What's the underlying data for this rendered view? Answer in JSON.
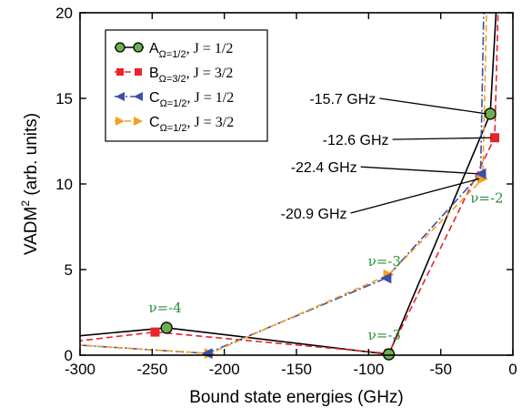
{
  "chart_data": {
    "type": "line",
    "xlabel": "Bound state energies (GHz)",
    "ylabel": "VADM",
    "ylabel_sup": "2",
    "ylabel_tail": " (arb. units)",
    "xlim": [
      -300,
      0
    ],
    "ylim": [
      0,
      20
    ],
    "xticks": [
      -300,
      -250,
      -200,
      -150,
      -100,
      -50,
      0
    ],
    "yticks": [
      0,
      5,
      10,
      15,
      20
    ],
    "legend_position": "top-left",
    "series": [
      {
        "key": "A",
        "legend_letter": "A",
        "legend_sub": "Ω=1/2",
        "legend_j": ", J = 1/2",
        "color": "#000000",
        "marker_fill": "#6ab04c",
        "marker": "circle",
        "dash": "",
        "points": [
          [
            -330,
            0.9
          ],
          [
            -240,
            1.6
          ],
          [
            -86,
            0.05
          ],
          [
            -15.7,
            14.1
          ],
          [
            -11,
            21
          ]
        ]
      },
      {
        "key": "B",
        "legend_letter": "B",
        "legend_sub": "Ω=3/2",
        "legend_j": ", J = 3/2",
        "color": "#e8242a",
        "marker_fill": "#e8242a",
        "marker": "square",
        "dash": "7,4",
        "points": [
          [
            -330,
            0.55
          ],
          [
            -248,
            1.35
          ],
          [
            -86,
            0.1
          ],
          [
            -12.6,
            12.7
          ],
          [
            -10,
            21
          ]
        ]
      },
      {
        "key": "C1",
        "legend_letter": "C",
        "legend_sub": "Ω=1/2",
        "legend_j": ", J = 1/2",
        "color": "#3b4fa8",
        "marker_fill": "#3b4fa8",
        "marker": "triangle-left",
        "dash": "9,3,2,3",
        "points": [
          [
            -330,
            0.75
          ],
          [
            -212,
            0.1
          ],
          [
            -88,
            4.5
          ],
          [
            -22.4,
            10.6
          ],
          [
            -20,
            21
          ]
        ]
      },
      {
        "key": "C3",
        "legend_letter": "C",
        "legend_sub": "Ω=1/2",
        "legend_j": ", J = 3/2",
        "color": "#f4a020",
        "marker_fill": "#f4a020",
        "marker": "triangle-right",
        "dash": "7,4",
        "points": [
          [
            -330,
            0.75
          ],
          [
            -210,
            0.1
          ],
          [
            -86,
            4.7
          ],
          [
            -20.9,
            10.3
          ],
          [
            -18,
            21
          ]
        ]
      }
    ],
    "markers_shown": {
      "A": [
        [
          -240,
          1.6
        ],
        [
          -86,
          0.05
        ],
        [
          -15.7,
          14.1
        ]
      ],
      "B": [
        [
          -248,
          1.35
        ],
        [
          -86,
          0.1
        ],
        [
          -12.6,
          12.7
        ]
      ],
      "C1": [
        [
          -212,
          0.1
        ],
        [
          -88,
          4.5
        ],
        [
          -22.4,
          10.6
        ]
      ],
      "C3": [
        [
          -210,
          0.1
        ],
        [
          -86,
          4.7
        ],
        [
          -20.9,
          10.3
        ]
      ]
    },
    "annotations": [
      {
        "text": "-15.7 GHz",
        "label_at": [
          -95,
          15.0
        ],
        "arrow_to": [
          -15.7,
          14.1
        ]
      },
      {
        "text": "-12.6 GHz",
        "label_at": [
          -86,
          12.6
        ],
        "arrow_to": [
          -12.6,
          12.7
        ]
      },
      {
        "text": "-22.4 GHz",
        "label_at": [
          -108,
          11.0
        ],
        "arrow_to": [
          -22.4,
          10.6
        ]
      },
      {
        "text": "-20.9 GHz",
        "label_at": [
          -115,
          8.3
        ],
        "arrow_to": [
          -20.9,
          10.3
        ]
      }
    ],
    "nu_labels": [
      {
        "text": "ν=-4",
        "at": [
          -241,
          2.5
        ]
      },
      {
        "text": "ν=-3",
        "at": [
          -89,
          5.2
        ]
      },
      {
        "text": "ν=-3",
        "at": [
          -89,
          0.9
        ]
      },
      {
        "text": "ν=-2",
        "at": [
          -18,
          8.9
        ]
      }
    ]
  }
}
